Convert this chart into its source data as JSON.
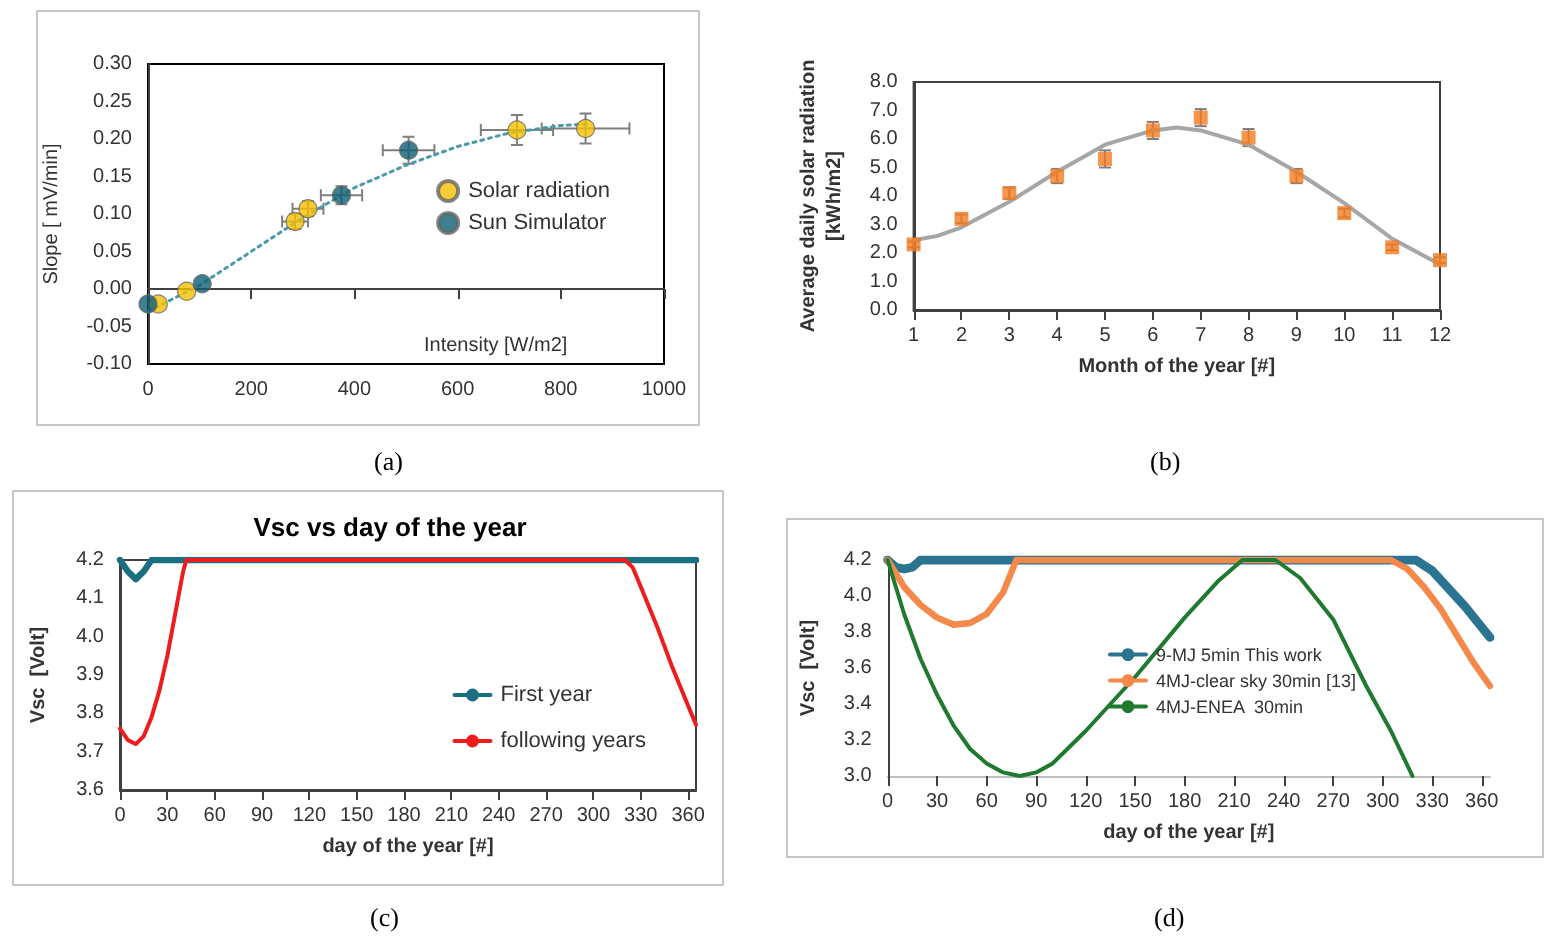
{
  "chart_data": [
    {
      "type": "scatter",
      "xlabel": "Intensity [W/m2]",
      "ylabel": "Slope [ mV/min]",
      "xlim": [
        0,
        1000
      ],
      "xticks": [
        0,
        200,
        400,
        600,
        800,
        1000
      ],
      "ylim": [
        -0.1,
        0.3
      ],
      "yticks": [
        {
          "value": -0.1,
          "label": "-0.10"
        },
        -0.05,
        {
          "value": 0,
          "label": "0.00"
        },
        0.05,
        {
          "value": 0.1,
          "label": "0.10"
        },
        0.15,
        {
          "value": 0.2,
          "label": "0.20"
        },
        0.25,
        {
          "value": 0.3,
          "label": "0.30"
        }
      ],
      "marker": "circle",
      "legend": "right",
      "annotations": [
        "(a)"
      ],
      "series": [
        {
          "name": "Solar radiation",
          "color": "#f5c000",
          "x": [
            20,
            75,
            285,
            310,
            715,
            848
          ],
          "values": [
            -0.02,
            -0.003,
            0.09,
            0.107,
            0.212,
            0.214
          ],
          "errors": [
            null,
            null,
            0.01,
            0.01,
            0.02,
            0.02
          ],
          "xerrors": [
            null,
            null,
            25,
            30,
            70,
            85
          ]
        },
        {
          "name": "Sun Simulator",
          "color": "#0f5f73",
          "x": [
            0,
            105,
            375,
            505
          ],
          "values": [
            -0.02,
            0.007,
            0.125,
            0.185
          ],
          "errors": [
            null,
            null,
            0.012,
            0.018
          ],
          "xerrors": [
            null,
            null,
            40,
            50
          ]
        },
        {
          "type": "line",
          "marker": "none",
          "line_style": "dotted",
          "color": "#4a9aaa",
          "x": [
            0,
            100,
            200,
            300,
            400,
            500,
            600,
            700,
            800,
            850
          ],
          "values": [
            -0.03,
            0.005,
            0.05,
            0.095,
            0.135,
            0.165,
            0.19,
            0.208,
            0.218,
            0.22
          ]
        }
      ]
    },
    {
      "type": "scatter",
      "xlabel": "Month of the year [#]",
      "ylabel": "Average daily solar radiation\n[kWh/m2]",
      "xlim": [
        1,
        12
      ],
      "xticks": [
        1,
        2,
        3,
        4,
        5,
        6,
        7,
        8,
        9,
        10,
        11,
        12
      ],
      "ylim": [
        0,
        8
      ],
      "yticks": [
        {
          "value": 0,
          "label": "0.0"
        },
        {
          "value": 1,
          "label": "1.0"
        },
        {
          "value": 2,
          "label": "2.0"
        },
        {
          "value": 3,
          "label": "3.0"
        },
        {
          "value": 4,
          "label": "4.0"
        },
        {
          "value": 5,
          "label": "5.0"
        },
        {
          "value": 6,
          "label": "6.0"
        },
        {
          "value": 7,
          "label": "7.0"
        },
        {
          "value": 8,
          "label": "8.0"
        }
      ],
      "marker": "square",
      "annotations": [
        "(b)"
      ],
      "series": [
        {
          "color": "#f47c20",
          "x": [
            1,
            2,
            3,
            4,
            5,
            6,
            7,
            8,
            9,
            10,
            11,
            12
          ],
          "values": [
            2.3,
            3.2,
            4.1,
            4.7,
            5.3,
            6.3,
            6.75,
            6.05,
            4.7,
            3.4,
            2.2,
            1.75
          ],
          "errors": [
            0.1,
            0.15,
            0.2,
            0.25,
            0.3,
            0.3,
            0.3,
            0.3,
            0.25,
            0.15,
            0.1,
            0.1
          ]
        },
        {
          "type": "line",
          "marker": "none",
          "color": "#a6a6a6",
          "x": [
            1,
            1.5,
            2,
            3,
            4,
            5,
            6,
            6.5,
            7,
            8,
            9,
            10,
            11,
            12
          ],
          "values": [
            2.45,
            2.6,
            2.9,
            3.8,
            4.85,
            5.8,
            6.3,
            6.4,
            6.3,
            5.8,
            4.85,
            3.75,
            2.5,
            1.6
          ]
        }
      ]
    },
    {
      "type": "line",
      "title": "Vsc vs day of the year",
      "xlabel": "day of the year [#]",
      "ylabel": "Vsc  [Volt]",
      "xlim": [
        0,
        365
      ],
      "xticks": [
        0,
        30,
        60,
        90,
        120,
        150,
        180,
        210,
        240,
        270,
        300,
        330,
        360
      ],
      "ylim": [
        3.6,
        4.2
      ],
      "yticks": [
        3.6,
        3.7,
        3.8,
        3.9,
        {
          "value": 4,
          "label": "4.0"
        },
        4.1,
        4.2
      ],
      "marker": "none",
      "legend": "bottom right",
      "annotations": [
        "(c)"
      ],
      "series": [
        {
          "name": "First year",
          "color": "#1a6f80",
          "x": [
            0,
            5,
            10,
            15,
            20,
            365
          ],
          "values": [
            4.2,
            4.17,
            4.15,
            4.17,
            4.2,
            4.2
          ]
        },
        {
          "name": "following years",
          "color": "#ee1c1c",
          "x": [
            0,
            5,
            10,
            15,
            20,
            25,
            30,
            35,
            40,
            42,
            320,
            325,
            330,
            340,
            350,
            360,
            365
          ],
          "values": [
            3.76,
            3.73,
            3.72,
            3.74,
            3.79,
            3.86,
            3.95,
            4.06,
            4.17,
            4.2,
            4.2,
            4.18,
            4.13,
            4.03,
            3.92,
            3.82,
            3.77
          ]
        }
      ]
    },
    {
      "type": "line",
      "xlabel": "day of the year [#]",
      "ylabel": "Vsc  [Volt]",
      "xlim": [
        0,
        365
      ],
      "xticks": [
        0,
        30,
        60,
        90,
        120,
        150,
        180,
        210,
        240,
        270,
        300,
        330,
        360
      ],
      "ylim": [
        3.0,
        4.2
      ],
      "yticks": [
        {
          "value": 3,
          "label": "3.0"
        },
        3.2,
        3.4,
        3.6,
        3.8,
        {
          "value": 4,
          "label": "4.0"
        },
        4.2
      ],
      "marker": "none",
      "legend": "right",
      "annotations": [
        "(d)"
      ],
      "series": [
        {
          "name": "9-MJ 5min This work",
          "color": "#2a7391",
          "x": [
            0,
            5,
            10,
            15,
            20,
            320,
            330,
            340,
            350,
            365
          ],
          "values": [
            4.2,
            4.16,
            4.15,
            4.16,
            4.2,
            4.2,
            4.14,
            4.04,
            3.94,
            3.77
          ]
        },
        {
          "name": "4MJ-clear sky 30min [13]",
          "color": "#f4894a",
          "x": [
            0,
            10,
            20,
            30,
            40,
            50,
            60,
            70,
            78,
            305,
            315,
            325,
            335,
            345,
            355,
            365
          ],
          "values": [
            4.2,
            4.05,
            3.95,
            3.88,
            3.84,
            3.85,
            3.9,
            4.02,
            4.2,
            4.2,
            4.15,
            4.05,
            3.93,
            3.78,
            3.63,
            3.5
          ]
        },
        {
          "name": "4MJ-ENEA  30min",
          "color": "#1f7a30",
          "x": [
            0,
            10,
            20,
            30,
            40,
            50,
            60,
            70,
            80,
            90,
            100,
            120,
            150,
            180,
            200,
            215,
            235,
            250,
            270,
            290,
            305,
            318
          ],
          "values": [
            4.2,
            3.9,
            3.65,
            3.45,
            3.28,
            3.15,
            3.07,
            3.02,
            3.0,
            3.02,
            3.07,
            3.25,
            3.55,
            3.88,
            4.08,
            4.2,
            4.2,
            4.1,
            3.87,
            3.5,
            3.25,
            3.0
          ]
        }
      ]
    }
  ]
}
